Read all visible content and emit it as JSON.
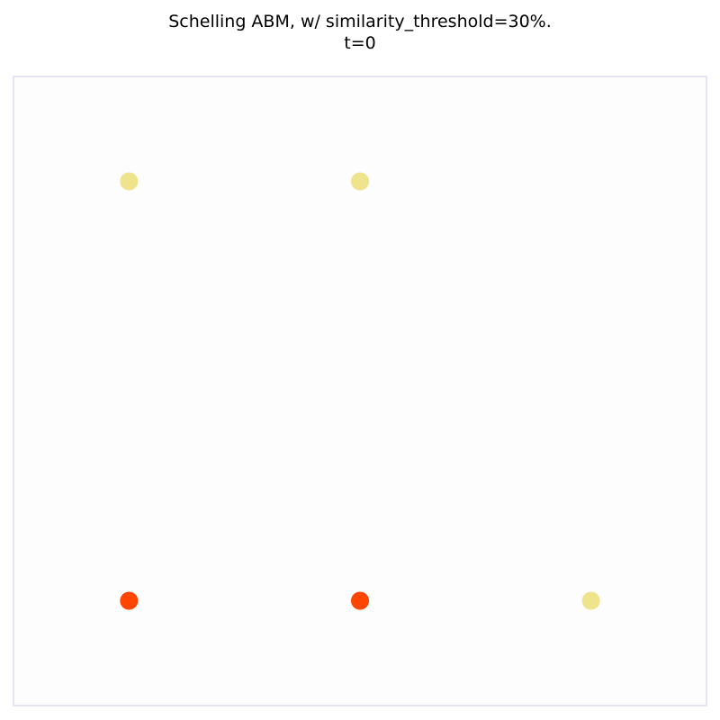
{
  "title_line1": "Schelling ABM, w/ similarity_threshold=30%.",
  "title_line2": "t=0",
  "colors": {
    "frame": "#e4e4f4",
    "background": "#fdfdfd",
    "group_a": "#efe38b",
    "group_b": "#ff4500"
  },
  "chart_data": {
    "type": "scatter",
    "title": "Schelling ABM, w/ similarity_threshold=30%.\nt=0",
    "xlim": [
      0.5,
      3.5
    ],
    "ylim": [
      0.5,
      3.5
    ],
    "grid": false,
    "axes_ticks_visible": false,
    "series": [
      {
        "color": "#efe38b",
        "points": [
          [
            1,
            3
          ],
          [
            2,
            3
          ],
          [
            3,
            1
          ]
        ]
      },
      {
        "color": "#ff4500",
        "points": [
          [
            1,
            1
          ],
          [
            2,
            1
          ]
        ]
      }
    ]
  }
}
